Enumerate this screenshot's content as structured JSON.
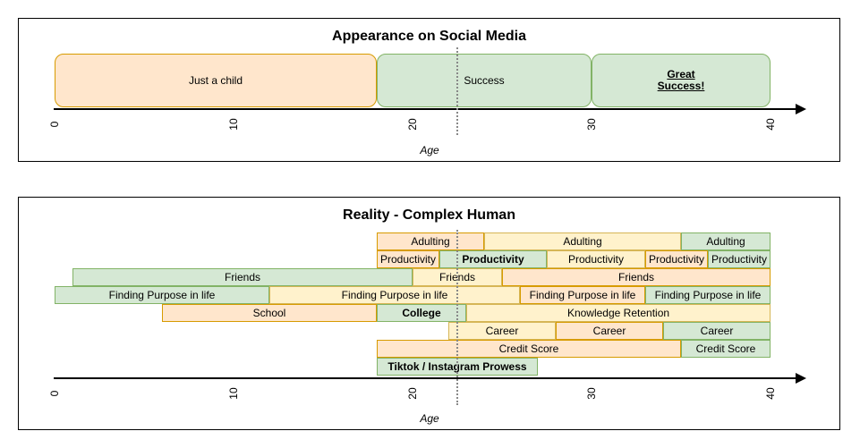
{
  "top": {
    "title": "Appearance on Social Media",
    "bars": [
      {
        "label": "Just a child",
        "start": 0,
        "end": 18,
        "color": "orange",
        "bold": false,
        "underline": false
      },
      {
        "label": "Success",
        "start": 18,
        "end": 30,
        "color": "green",
        "bold": false,
        "underline": false
      },
      {
        "label": "Great\nSuccess!",
        "start": 30,
        "end": 40,
        "color": "green",
        "bold": true,
        "underline": true
      }
    ],
    "ticks": [
      "0",
      "10",
      "20",
      "30",
      "40"
    ],
    "axis_label": "Age"
  },
  "bottom": {
    "title": "Reality - Complex Human",
    "rows": [
      [
        {
          "label": "Adulting",
          "start": 18,
          "end": 24,
          "color": "orange",
          "bold": false
        },
        {
          "label": "Adulting",
          "start": 24,
          "end": 35,
          "color": "yellow",
          "bold": false
        },
        {
          "label": "Adulting",
          "start": 35,
          "end": 40,
          "color": "green",
          "bold": false
        }
      ],
      [
        {
          "label": "Productivity",
          "start": 18,
          "end": 21.5,
          "color": "orange",
          "bold": false
        },
        {
          "label": "Productivity",
          "start": 21.5,
          "end": 27.5,
          "color": "green",
          "bold": true
        },
        {
          "label": "Productivity",
          "start": 27.5,
          "end": 33,
          "color": "yellow",
          "bold": false
        },
        {
          "label": "Productivity",
          "start": 33,
          "end": 36.5,
          "color": "orange",
          "bold": false
        },
        {
          "label": "Productivity",
          "start": 36.5,
          "end": 40,
          "color": "green",
          "bold": false
        }
      ],
      [
        {
          "label": "Friends",
          "start": 1,
          "end": 20,
          "color": "green",
          "bold": false
        },
        {
          "label": "Friends",
          "start": 20,
          "end": 25,
          "color": "yellow",
          "bold": false
        },
        {
          "label": "Friends",
          "start": 25,
          "end": 40,
          "color": "orange",
          "bold": false
        }
      ],
      [
        {
          "label": "Finding Purpose in life",
          "start": 0,
          "end": 12,
          "color": "green",
          "bold": false
        },
        {
          "label": "Finding Purpose in life",
          "start": 12,
          "end": 26,
          "color": "yellow",
          "bold": false
        },
        {
          "label": "Finding Purpose in life",
          "start": 26,
          "end": 33,
          "color": "orange",
          "bold": false
        },
        {
          "label": "Finding Purpose in life",
          "start": 33,
          "end": 40,
          "color": "green",
          "bold": false
        }
      ],
      [
        {
          "label": "School",
          "start": 6,
          "end": 18,
          "color": "orange",
          "bold": false
        },
        {
          "label": "College",
          "start": 18,
          "end": 23,
          "color": "green",
          "bold": true
        },
        {
          "label": "Knowledge Retention",
          "start": 23,
          "end": 40,
          "color": "yellow",
          "bold": false
        }
      ],
      [
        {
          "label": "Career",
          "start": 22,
          "end": 28,
          "color": "yellow",
          "bold": false
        },
        {
          "label": "Career",
          "start": 28,
          "end": 34,
          "color": "orange",
          "bold": false
        },
        {
          "label": "Career",
          "start": 34,
          "end": 40,
          "color": "green",
          "bold": false
        }
      ],
      [
        {
          "label": "Credit Score",
          "start": 18,
          "end": 35,
          "color": "orange",
          "bold": false
        },
        {
          "label": "Credit Score",
          "start": 35,
          "end": 40,
          "color": "green",
          "bold": false
        }
      ],
      [
        {
          "label": "Tiktok / Instagram Prowess",
          "start": 18,
          "end": 27,
          "color": "green",
          "bold": true
        }
      ]
    ],
    "ticks": [
      "0",
      "10",
      "20",
      "30",
      "40"
    ],
    "axis_label": "Age"
  },
  "marker_age": 22.5,
  "colors": {
    "orange": "#ffe6cc",
    "green": "#d5e8d4",
    "yellow": "#fff2cc",
    "dashed_line": "#888888"
  }
}
